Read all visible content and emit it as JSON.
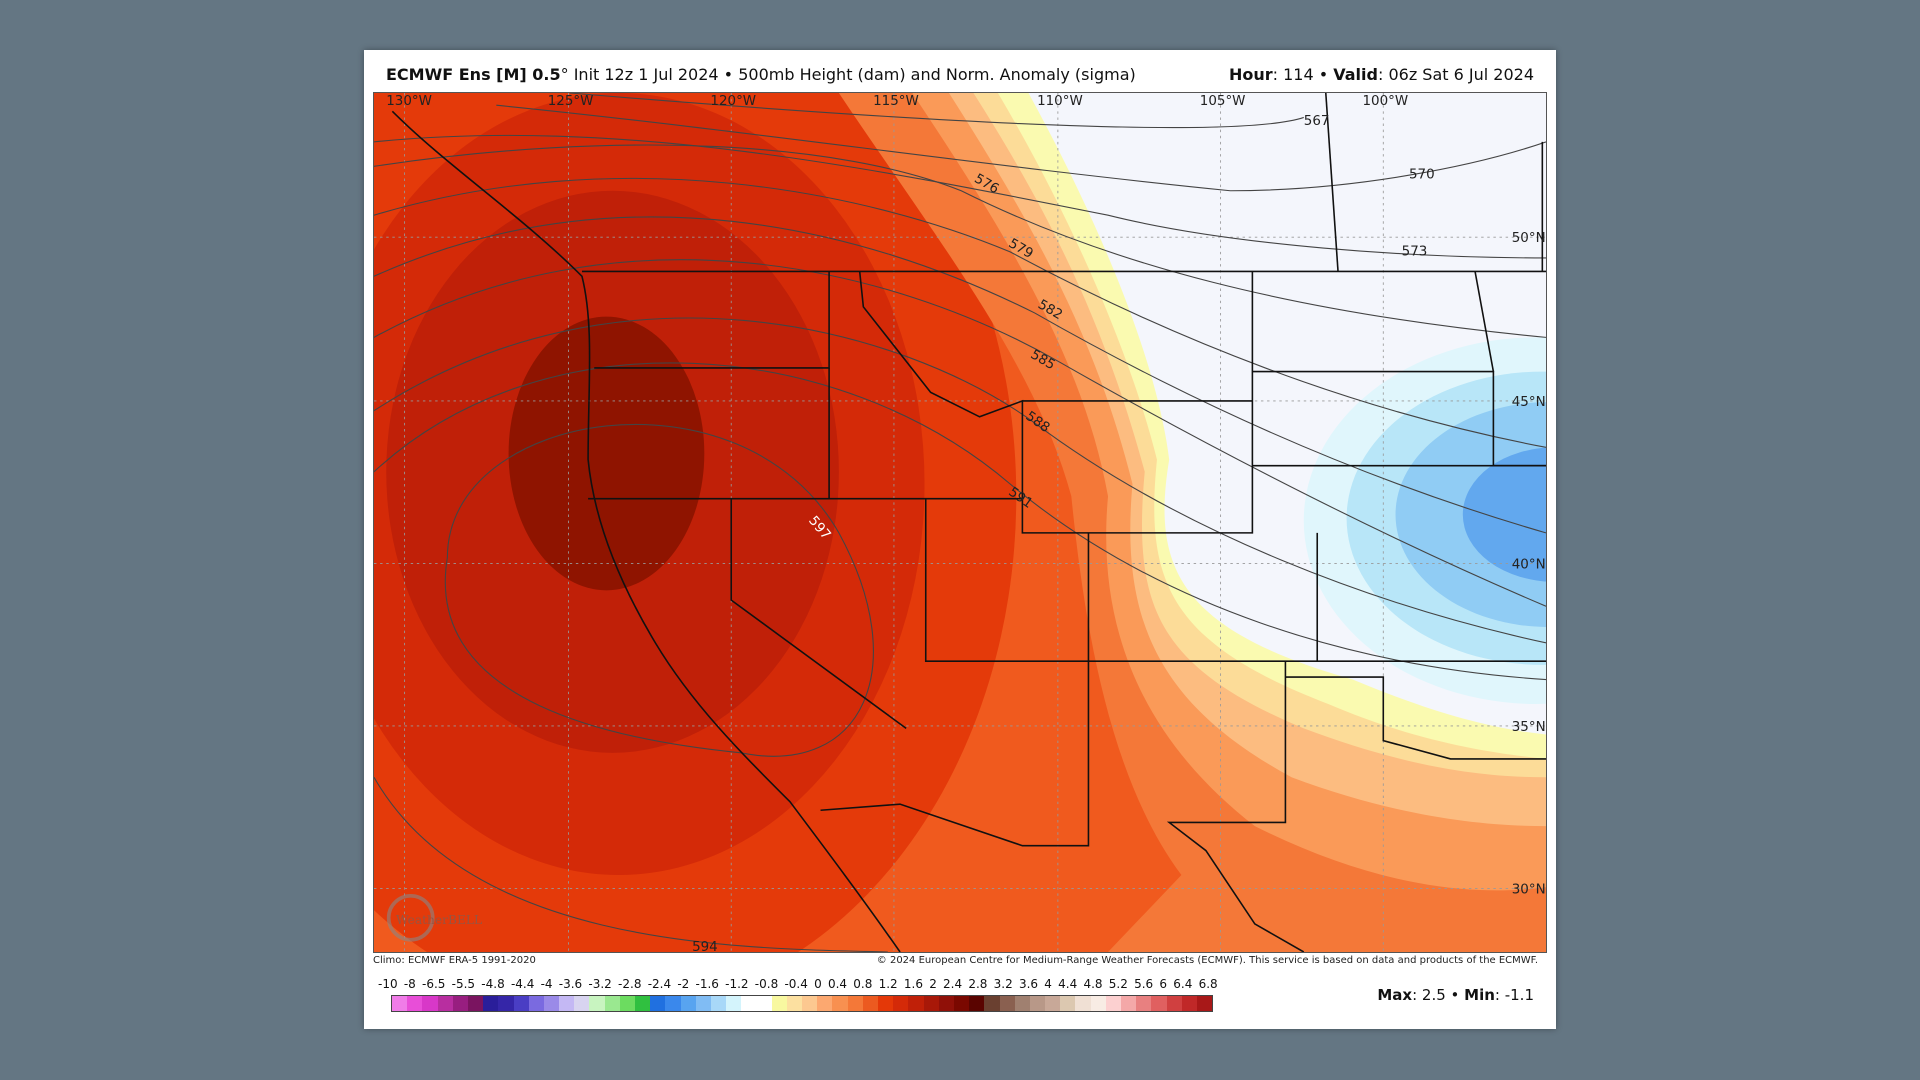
{
  "header": {
    "model": "ECMWF Ens [M] 0.5",
    "degree": "°",
    "init": " Init 12z 1 Jul 2024 • 500mb Height (dam) and Norm. Anomaly (sigma)",
    "hour_label": "Hour",
    "hour": ": 114 • ",
    "valid_label": "Valid",
    "valid": ": 06z Sat 6 Jul 2024"
  },
  "map": {
    "lon_labels": [
      "130°W",
      "125°W",
      "120°W",
      "115°W",
      "110°W",
      "105°W",
      "100°W"
    ],
    "lat_labels": [
      "50°N",
      "45°N",
      "40°N",
      "35°N",
      "30°N"
    ],
    "contour_labels": [
      "567",
      "570",
      "573",
      "576",
      "579",
      "582",
      "585",
      "588",
      "591",
      "597",
      "594"
    ],
    "logo_text": "WeatherBELL",
    "logo_sub": "Analytics LLC"
  },
  "footer": {
    "climo": "Climo: ECMWF ERA-5 1991-2020",
    "copyright": "© 2024 European Centre for Medium-Range Weather Forecasts (ECMWF). This service is based on data and products of the ECMWF."
  },
  "colorbar": {
    "labels": [
      "-10",
      "-8",
      "-6.5",
      "-5.5",
      "-4.8",
      "-4.4",
      "-4",
      "-3.6",
      "-3.2",
      "-2.8",
      "-2.4",
      "-2",
      "-1.6",
      "-1.2",
      "-0.8",
      "-0.4",
      "0",
      "0.4",
      "0.8",
      "1.2",
      "1.6",
      "2",
      "2.4",
      "2.8",
      "3.2",
      "3.6",
      "4",
      "4.4",
      "4.8",
      "5.2",
      "5.6",
      "6",
      "6.4",
      "6.8"
    ],
    "colors": [
      "#f07ce8",
      "#e84ed8",
      "#d838c8",
      "#b82ea0",
      "#981e80",
      "#7a1460",
      "#2a1e9a",
      "#3526a8",
      "#4a3ec4",
      "#7a6ae0",
      "#9a8ae8",
      "#c4b8f4",
      "#d8d4f0",
      "#c8f4c0",
      "#9ae890",
      "#6cdc60",
      "#30c040",
      "#2070e0",
      "#3a88ec",
      "#58a4f0",
      "#80bcf4",
      "#a8d8f8",
      "#d4f4fc",
      "#ffffff",
      "#ffffff",
      "#f8f8a0",
      "#fce0a0",
      "#fcc890",
      "#fca870",
      "#f89050",
      "#f47838",
      "#ec5a20",
      "#e43808",
      "#d42a08",
      "#c02008",
      "#a81808",
      "#901008",
      "#7a0800",
      "#5a0400",
      "#6a4030",
      "#8a6050",
      "#a08070",
      "#b89888",
      "#c8a898",
      "#dcc8b0",
      "#f0e0d4",
      "#f8ece4",
      "#fcd0d0",
      "#f4a8a8",
      "#e88080",
      "#e06060",
      "#d04040",
      "#c02828",
      "#a81818"
    ]
  },
  "stats": {
    "max_label": "Max",
    "max": ": 2.5 • ",
    "min_label": "Min",
    "min": ": -1.1"
  }
}
